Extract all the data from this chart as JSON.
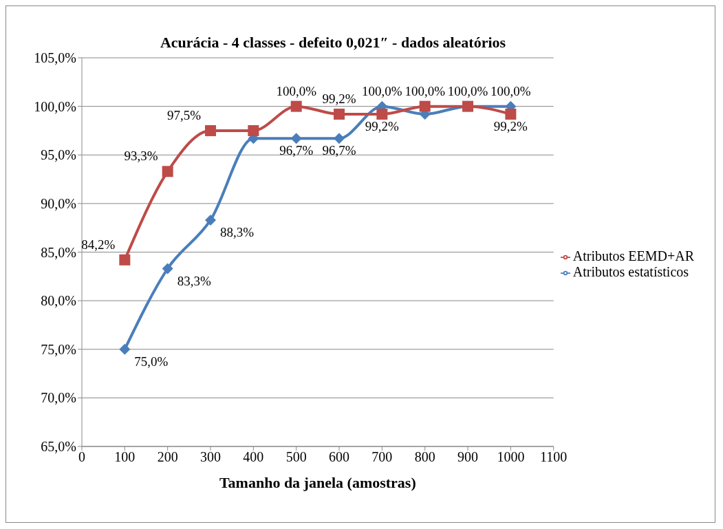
{
  "chart_data": {
    "type": "line",
    "title": "Acurácia - 4 classes - defeito 0,021″ - dados aleatórios",
    "xlabel": "Tamanho da janela (amostras)",
    "x": [
      100,
      200,
      300,
      400,
      500,
      600,
      700,
      800,
      900,
      1000
    ],
    "series": [
      {
        "name": "Atributos estatísticos",
        "color": "#4a7ebb",
        "marker": "diamond",
        "values": [
          75.0,
          83.3,
          88.3,
          96.7,
          96.7,
          96.7,
          100.0,
          99.2,
          100.0,
          100.0
        ],
        "value_labels": [
          "75,0%",
          "83,3%",
          "88,3%",
          null,
          "96,7%",
          "96,7%",
          "100,0%",
          null,
          "100,0%",
          "100,0%"
        ]
      },
      {
        "name": "Atributos EEMD+AR",
        "color": "#be4b48",
        "marker": "square",
        "values": [
          84.2,
          93.3,
          97.5,
          97.5,
          100.0,
          99.2,
          99.2,
          100.0,
          100.0,
          99.2
        ],
        "value_labels": [
          "84,2%",
          "93,3%",
          "97,5%",
          null,
          "100,0%",
          "99,2%",
          "99,2%",
          "100,0%",
          null,
          "99,2%"
        ]
      }
    ],
    "xlim": [
      0,
      1100
    ],
    "xticks": [
      0,
      100,
      200,
      300,
      400,
      500,
      600,
      700,
      800,
      900,
      1000,
      1100
    ],
    "ylim": [
      65,
      105
    ],
    "yticks": [
      {
        "value": 65,
        "label": "65,0%"
      },
      {
        "value": 70,
        "label": "70,0%"
      },
      {
        "value": 75,
        "label": "75,0%"
      },
      {
        "value": 80,
        "label": "80,0%"
      },
      {
        "value": 85,
        "label": "85,0%"
      },
      {
        "value": 90,
        "label": "90,0%"
      },
      {
        "value": 95,
        "label": "95,0%"
      },
      {
        "value": 100,
        "label": "100,0%"
      },
      {
        "value": 105,
        "label": "105,0%"
      }
    ],
    "grid": "y",
    "legend": "right",
    "line_style": "solid"
  }
}
